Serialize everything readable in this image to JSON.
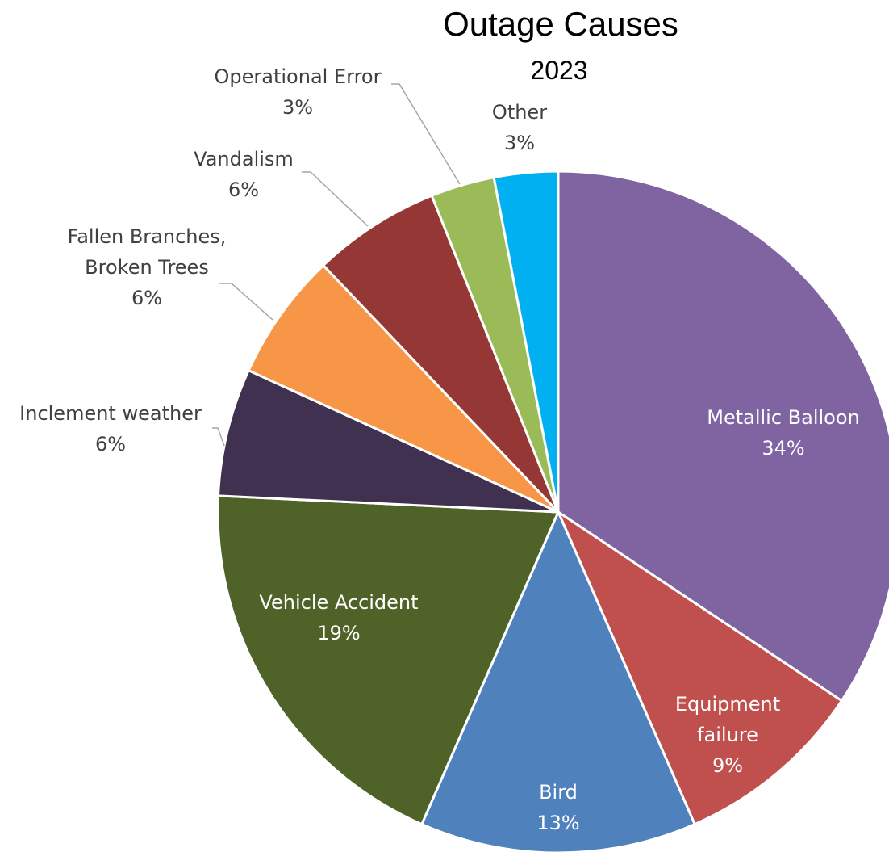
{
  "chart_data": {
    "type": "pie",
    "title": "Outage Causes",
    "subtitle": "2023",
    "unit": "%",
    "start_angle_deg": 0,
    "direction": "clockwise",
    "slices": [
      {
        "label": "Metallic Balloon",
        "value": 34,
        "color": "#8064A2",
        "label_color": "#ffffff",
        "label_placement": "inside"
      },
      {
        "label": "Equipment failure",
        "value": 9,
        "color": "#C0504D",
        "label_color": "#ffffff",
        "label_placement": "inside"
      },
      {
        "label": "Bird",
        "value": 13,
        "color": "#4F81BD",
        "label_color": "#ffffff",
        "label_placement": "inside"
      },
      {
        "label": "Vehicle Accident",
        "value": 19,
        "color": "#4F6228",
        "label_color": "#ffffff",
        "label_placement": "inside"
      },
      {
        "label": "Inclement weather",
        "value": 6,
        "color": "#403151",
        "label_color": "#404040",
        "label_placement": "outside"
      },
      {
        "label": "Fallen Branches, Broken Trees",
        "value": 6,
        "color": "#F79646",
        "label_color": "#404040",
        "label_placement": "outside"
      },
      {
        "label": "Vandalism",
        "value": 6,
        "color": "#953735",
        "label_color": "#404040",
        "label_placement": "outside"
      },
      {
        "label": "Operational Error",
        "value": 3,
        "color": "#9BBB59",
        "label_color": "#404040",
        "label_placement": "outside"
      },
      {
        "label": "Other",
        "value": 3,
        "color": "#00B0F0",
        "label_color": "#404040",
        "label_placement": "outside"
      }
    ]
  }
}
